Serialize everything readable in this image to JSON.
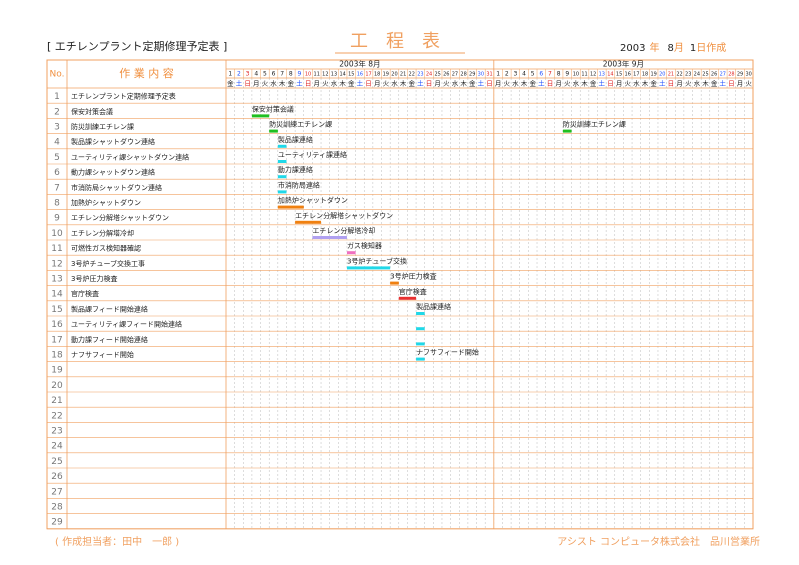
{
  "header": {
    "title": "[ エチレンプラント定期修理予定表 ]",
    "main_title": "工　程　表",
    "date": {
      "year": "2003",
      "year_unit": "年",
      "month": "8",
      "month_unit": "月",
      "day": "1",
      "day_unit": "日作成"
    }
  },
  "table": {
    "no_header": "No.",
    "task_header": "作 業 内 容",
    "weekday_colors": {
      "土": "#2050ff",
      "日": "#e02020"
    },
    "months": [
      {
        "label": "2003年 8月",
        "month": 8,
        "days": [
          1,
          2,
          3,
          4,
          5,
          6,
          7,
          8,
          9,
          10,
          11,
          12,
          13,
          14,
          15,
          16,
          17,
          18,
          19,
          20,
          21,
          22,
          23,
          24,
          25,
          26,
          27,
          28,
          29,
          30,
          31
        ],
        "weekdays": [
          "金",
          "土",
          "日",
          "月",
          "火",
          "水",
          "木",
          "金",
          "土",
          "日",
          "月",
          "火",
          "水",
          "木",
          "金",
          "土",
          "日",
          "月",
          "火",
          "水",
          "木",
          "金",
          "土",
          "日",
          "月",
          "火",
          "水",
          "木",
          "金",
          "土",
          "日"
        ]
      },
      {
        "label": "2003年 9月",
        "month": 9,
        "days": [
          1,
          2,
          3,
          4,
          5,
          6,
          7,
          8,
          9,
          10,
          11,
          12,
          13,
          14,
          15,
          16,
          17,
          18,
          19,
          20,
          21,
          22,
          23,
          24,
          25,
          26,
          27,
          28,
          29,
          30
        ],
        "weekdays": [
          "月",
          "火",
          "水",
          "木",
          "金",
          "土",
          "日",
          "月",
          "火",
          "水",
          "木",
          "金",
          "土",
          "日",
          "月",
          "火",
          "水",
          "木",
          "金",
          "土",
          "日",
          "月",
          "火",
          "水",
          "木",
          "金",
          "土",
          "日",
          "月",
          "火"
        ]
      }
    ],
    "rows": [
      {
        "no": 1,
        "task": "エチレンプラント定期修理予定表",
        "bars": []
      },
      {
        "no": 2,
        "task": "保安対策会議",
        "bars": [
          {
            "month": 8,
            "start": 4,
            "end": 5,
            "color": "#20c020",
            "label": "保安対策会議"
          }
        ]
      },
      {
        "no": 3,
        "task": "防災訓練エチレン課",
        "bars": [
          {
            "month": 8,
            "start": 6,
            "end": 6,
            "color": "#20c020",
            "label": "防災訓練エチレン課"
          },
          {
            "month": 9,
            "start": 9,
            "end": 9,
            "color": "#20c020",
            "label": "防災訓練エチレン課"
          }
        ]
      },
      {
        "no": 4,
        "task": "製品課シャットダウン連絡",
        "bars": [
          {
            "month": 8,
            "start": 7,
            "end": 7,
            "color": "#20d8e8",
            "label": "製品課連絡"
          }
        ]
      },
      {
        "no": 5,
        "task": "ユーティリティ課シャットダウン連絡",
        "bars": [
          {
            "month": 8,
            "start": 7,
            "end": 7,
            "color": "#20d8e8",
            "label": "ユーティリティ課連絡"
          }
        ]
      },
      {
        "no": 6,
        "task": "動力課シャットダウン連絡",
        "bars": [
          {
            "month": 8,
            "start": 7,
            "end": 7,
            "color": "#20d8e8",
            "label": "動力課連絡"
          }
        ]
      },
      {
        "no": 7,
        "task": "市消防局シャットダウン連絡",
        "bars": [
          {
            "month": 8,
            "start": 7,
            "end": 7,
            "color": "#20d8e8",
            "label": "市消防局連絡"
          }
        ]
      },
      {
        "no": 8,
        "task": "加熱炉シャットダウン",
        "bars": [
          {
            "month": 8,
            "start": 7,
            "end": 9,
            "color": "#f08010",
            "label": "加熱炉シャットダウン"
          }
        ]
      },
      {
        "no": 9,
        "task": "エチレン分解塔シャットダウン",
        "bars": [
          {
            "month": 8,
            "start": 9,
            "end": 11,
            "color": "#f08010",
            "label": "エチレン分解塔シャットダウン"
          }
        ]
      },
      {
        "no": 10,
        "task": "エチレン分解塔冷却",
        "bars": [
          {
            "month": 8,
            "start": 11,
            "end": 14,
            "color": "#b0a0f0",
            "label": "エチレン分解塔冷却"
          }
        ]
      },
      {
        "no": 11,
        "task": "可燃性ガス検知器確認",
        "bars": [
          {
            "month": 8,
            "start": 15,
            "end": 15,
            "color": "#f070c0",
            "label": "ガス検知器"
          }
        ]
      },
      {
        "no": 12,
        "task": "3号炉チューブ交換工事",
        "bars": [
          {
            "month": 8,
            "start": 15,
            "end": 19,
            "color": "#20d8e8",
            "label": "3号炉チューブ交換"
          }
        ]
      },
      {
        "no": 13,
        "task": "3号炉圧力検査",
        "bars": [
          {
            "month": 8,
            "start": 20,
            "end": 20,
            "color": "#f08010",
            "label": "3号炉圧力検査"
          }
        ]
      },
      {
        "no": 14,
        "task": "官庁検査",
        "bars": [
          {
            "month": 8,
            "start": 21,
            "end": 22,
            "color": "#e83030",
            "label": "官庁検査"
          }
        ]
      },
      {
        "no": 15,
        "task": "製品課フィード開始連絡",
        "bars": [
          {
            "month": 8,
            "start": 23,
            "end": 23,
            "color": "#20d8e8",
            "label": "製品課連絡"
          }
        ]
      },
      {
        "no": 16,
        "task": "ユーティリティ課フィード開始連絡",
        "bars": [
          {
            "month": 8,
            "start": 23,
            "end": 23,
            "color": "#20d8e8"
          }
        ]
      },
      {
        "no": 17,
        "task": "動力課フィード開始連絡",
        "bars": [
          {
            "month": 8,
            "start": 23,
            "end": 23,
            "color": "#20d8e8"
          }
        ]
      },
      {
        "no": 18,
        "task": "ナフサフィード開始",
        "bars": [
          {
            "month": 8,
            "start": 23,
            "end": 23,
            "color": "#20d8e8",
            "label": "ナフサフィード開始"
          }
        ]
      },
      {
        "no": 19
      },
      {
        "no": 20
      },
      {
        "no": 21
      },
      {
        "no": 22
      },
      {
        "no": 23
      },
      {
        "no": 24
      },
      {
        "no": 25
      },
      {
        "no": 26
      },
      {
        "no": 27
      },
      {
        "no": 28
      },
      {
        "no": 29
      }
    ]
  },
  "footer": {
    "author": "( 作成担当者：田中　一郎 )",
    "company": "アシスト コンピュータ株式会社　品川営業所"
  }
}
